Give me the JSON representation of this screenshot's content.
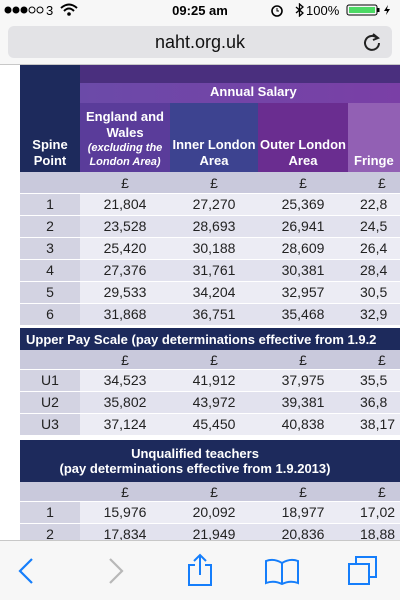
{
  "status_bar": {
    "carrier": "3",
    "time": "09:25 am",
    "battery": "100%"
  },
  "address_bar": {
    "url": "naht.org.uk"
  },
  "table": {
    "group_header": "Annual Salary",
    "columns": [
      {
        "title": "Spine Point"
      },
      {
        "title": "England and Wales",
        "note": "(excluding the London Area)"
      },
      {
        "title": "Inner London Area"
      },
      {
        "title": "Outer London Area"
      },
      {
        "title": "Fringe"
      }
    ],
    "sections": [
      {
        "currency": [
          "£",
          "£",
          "£",
          "£"
        ],
        "rows": [
          [
            "1",
            "21,804",
            "27,270",
            "25,369",
            "22,8"
          ],
          [
            "2",
            "23,528",
            "28,693",
            "26,941",
            "24,5"
          ],
          [
            "3",
            "25,420",
            "30,188",
            "28,609",
            "26,4"
          ],
          [
            "4",
            "27,376",
            "31,761",
            "30,381",
            "28,4"
          ],
          [
            "5",
            "29,533",
            "34,204",
            "32,957",
            "30,5"
          ],
          [
            "6",
            "31,868",
            "36,751",
            "35,468",
            "32,9"
          ]
        ]
      },
      {
        "title": "Upper Pay Scale (pay determinations effective from 1.9.2",
        "currency": [
          "£",
          "£",
          "£",
          "£"
        ],
        "rows": [
          [
            "U1",
            "34,523",
            "41,912",
            "37,975",
            "35,5"
          ],
          [
            "U2",
            "35,802",
            "43,972",
            "39,381",
            "36,8"
          ],
          [
            "U3",
            "37,124",
            "45,450",
            "40,838",
            "38,17"
          ]
        ]
      },
      {
        "title": "Unqualified teachers",
        "subtitle": "(pay determinations effective from 1.9.2013)",
        "currency": [
          "£",
          "£",
          "£",
          "£"
        ],
        "rows": [
          [
            "1",
            "15,976",
            "20,092",
            "18,977",
            "17,02"
          ],
          [
            "2",
            "17,834",
            "21,949",
            "20,836",
            "18,88"
          ]
        ]
      }
    ]
  }
}
